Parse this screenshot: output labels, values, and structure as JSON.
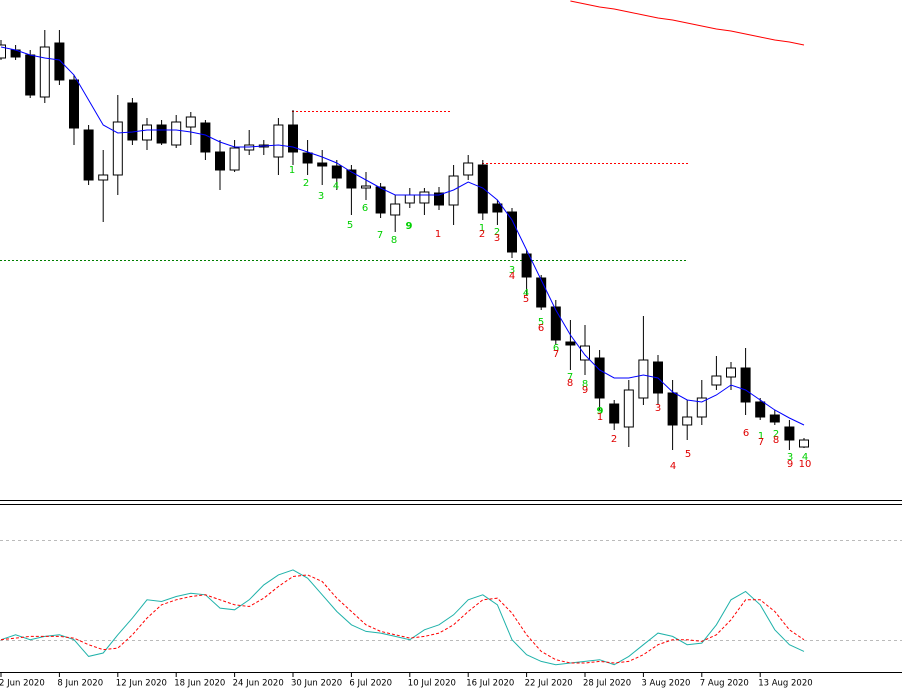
{
  "chart_data": [
    {
      "type": "candlestick",
      "categories": [
        "2 Jun 2020",
        null,
        null,
        null,
        "8 Jun 2020",
        null,
        null,
        null,
        "12 Jun 2020",
        null,
        null,
        null,
        "18 Jun 2020",
        null,
        null,
        null,
        "24 Jun 2020",
        null,
        null,
        null,
        "30 Jun 2020",
        null,
        null,
        null,
        "6 Jul 2020",
        null,
        null,
        null,
        "10 Jul 2020",
        null,
        null,
        null,
        "16 Jul 2020",
        null,
        null,
        null,
        "22 Jul 2020",
        null,
        null,
        null,
        "28 Jul 2020",
        null,
        null,
        null,
        "3 Aug 2020",
        null,
        null,
        null,
        "7 Aug 2020",
        null,
        null,
        null,
        "13 Aug 2020",
        null,
        null,
        null
      ],
      "open": [
        442,
        450,
        445,
        403,
        457,
        420,
        370,
        320,
        325,
        397,
        360,
        375,
        355,
        373,
        377,
        348,
        330,
        350,
        353,
        343,
        375,
        347,
        337,
        334,
        330,
        312,
        313,
        285,
        297,
        297,
        307,
        295,
        325,
        335,
        296,
        288,
        246,
        222,
        193,
        158,
        140,
        142,
        96,
        73,
        102,
        138,
        107,
        75,
        83,
        115,
        123,
        132,
        98,
        85,
        73,
        53
      ],
      "high": [
        460,
        455,
        450,
        470,
        470,
        425,
        375,
        350,
        405,
        402,
        382,
        380,
        385,
        388,
        380,
        360,
        360,
        370,
        360,
        382,
        390,
        360,
        350,
        340,
        335,
        328,
        317,
        305,
        312,
        312,
        313,
        335,
        345,
        340,
        300,
        292,
        250,
        225,
        200,
        180,
        175,
        150,
        100,
        120,
        184,
        145,
        120,
        100,
        120,
        144,
        138,
        152,
        102,
        90,
        80,
        62
      ],
      "low": [
        440,
        440,
        402,
        397,
        415,
        355,
        315,
        278,
        305,
        355,
        350,
        355,
        352,
        355,
        340,
        310,
        328,
        345,
        345,
        325,
        335,
        325,
        315,
        310,
        285,
        300,
        282,
        268,
        292,
        285,
        290,
        275,
        320,
        280,
        275,
        242,
        205,
        190,
        155,
        130,
        125,
        90,
        70,
        53,
        95,
        95,
        50,
        60,
        75,
        110,
        110,
        85,
        80,
        75,
        50,
        52
      ],
      "close": [
        455,
        443,
        405,
        453,
        420,
        372,
        320,
        325,
        378,
        360,
        375,
        357,
        378,
        383,
        348,
        330,
        352,
        355,
        355,
        375,
        348,
        337,
        334,
        322,
        312,
        314,
        287,
        296,
        305,
        308,
        295,
        324,
        337,
        287,
        288,
        248,
        223,
        193,
        160,
        155,
        154,
        102,
        77,
        110,
        140,
        107,
        75,
        83,
        102,
        124,
        132,
        98,
        83,
        78,
        60,
        60
      ],
      "up_color": "#ffffff",
      "down_color": "#000000",
      "ylim": [
        0,
        500
      ],
      "lines": [
        {
          "color": "#0000ff",
          "values": [
            453,
            450,
            445,
            442,
            440,
            425,
            400,
            375,
            367,
            368,
            370,
            370,
            370,
            368,
            365,
            358,
            353,
            353,
            354,
            355,
            353,
            348,
            343,
            337,
            328,
            320,
            312,
            305,
            305,
            305,
            305,
            310,
            318,
            312,
            300,
            280,
            250,
            220,
            190,
            165,
            145,
            130,
            122,
            122,
            125,
            122,
            108,
            100,
            98,
            105,
            115,
            110,
            100,
            90,
            82,
            75
          ]
        },
        {
          "color": "#ff0000",
          "values": [
            null,
            null,
            null,
            null,
            null,
            null,
            null,
            null,
            null,
            null,
            null,
            null,
            null,
            null,
            null,
            null,
            null,
            null,
            null,
            null,
            null,
            null,
            null,
            null,
            null,
            null,
            null,
            null,
            null,
            null,
            null,
            null,
            null,
            null,
            null,
            null,
            null,
            null,
            null,
            499,
            496,
            493,
            491,
            488,
            485,
            482,
            480,
            477,
            474,
            471,
            469,
            466,
            463,
            460,
            458,
            455
          ]
        }
      ],
      "levels": [
        {
          "value": 389,
          "color": "#ff0000"
        },
        {
          "value": 337,
          "color": "#ff0000"
        },
        {
          "value": 240,
          "color": "#008000"
        }
      ],
      "annotations": [
        {
          "text": "1",
          "color": "#00d000"
        },
        {
          "text": "2",
          "color": "#00d000"
        },
        {
          "text": "3",
          "color": "#00d000"
        },
        {
          "text": "4",
          "color": "#00d000"
        },
        {
          "text": "5",
          "color": "#00d000"
        },
        {
          "text": "6",
          "color": "#00d000"
        },
        {
          "text": "7",
          "color": "#00d000"
        },
        {
          "text": "8",
          "color": "#00d000"
        },
        {
          "text": "9",
          "color": "#00d000",
          "bold": true
        },
        {
          "text": "1",
          "color": "#e00000"
        },
        {
          "text": "1",
          "color": "#00d000"
        },
        {
          "text": "2",
          "color": "#e00000"
        },
        {
          "text": "2",
          "color": "#00d000"
        },
        {
          "text": "3",
          "color": "#e00000"
        },
        {
          "text": "3",
          "color": "#00d000"
        },
        {
          "text": "4",
          "color": "#e00000"
        },
        {
          "text": "4",
          "color": "#00d000"
        },
        {
          "text": "5",
          "color": "#e00000"
        },
        {
          "text": "5",
          "color": "#00d000"
        },
        {
          "text": "6",
          "color": "#e00000"
        },
        {
          "text": "6",
          "color": "#00d000"
        },
        {
          "text": "7",
          "color": "#e00000"
        },
        {
          "text": "7",
          "color": "#00d000"
        },
        {
          "text": "8",
          "color": "#e00000"
        },
        {
          "text": "8",
          "color": "#00d000"
        },
        {
          "text": "9",
          "color": "#e00000"
        },
        {
          "text": "9",
          "color": "#00d000",
          "bold": true
        },
        {
          "text": "1",
          "color": "#e00000"
        },
        {
          "text": "2",
          "color": "#e00000"
        },
        {
          "text": "3",
          "color": "#e00000"
        },
        {
          "text": "4",
          "color": "#e00000"
        },
        {
          "text": "5",
          "color": "#e00000"
        },
        {
          "text": "6",
          "color": "#e00000"
        },
        {
          "text": "1",
          "color": "#00d000"
        },
        {
          "text": "7",
          "color": "#e00000"
        },
        {
          "text": "2",
          "color": "#00d000"
        },
        {
          "text": "8",
          "color": "#e00000"
        },
        {
          "text": "3",
          "color": "#00d000"
        },
        {
          "text": "9",
          "color": "#e00000"
        },
        {
          "text": "4",
          "color": "#00d000"
        },
        {
          "text": "10",
          "color": "#e00000"
        }
      ]
    },
    {
      "type": "line",
      "ylim": [
        0,
        100
      ],
      "levels": [
        80,
        20
      ],
      "series": [
        {
          "color": "#20b2aa",
          "values": [
            20,
            23,
            20,
            22,
            23,
            20,
            10,
            12,
            23,
            33,
            44,
            43,
            46,
            48,
            47,
            39,
            38,
            44,
            53,
            59,
            62,
            57,
            47,
            37,
            29,
            25,
            24,
            22,
            20,
            26,
            29,
            35,
            44,
            47,
            41,
            20,
            11,
            7,
            5,
            6,
            7,
            8,
            5,
            10,
            17,
            24,
            22,
            17,
            18,
            29,
            44,
            49,
            41,
            26,
            17,
            13
          ]
        },
        {
          "color": "#ff0000",
          "dashed": true,
          "values": [
            20,
            21,
            22,
            22,
            22,
            21,
            17,
            14,
            15,
            23,
            33,
            41,
            44,
            46,
            47,
            44,
            41,
            40,
            45,
            52,
            58,
            59,
            55,
            45,
            37,
            29,
            25,
            23,
            21,
            22,
            24,
            29,
            37,
            44,
            45,
            36,
            23,
            13,
            8,
            6,
            6,
            7,
            6,
            7,
            11,
            17,
            20,
            20,
            19,
            23,
            32,
            44,
            44,
            37,
            26,
            20
          ]
        }
      ]
    }
  ]
}
